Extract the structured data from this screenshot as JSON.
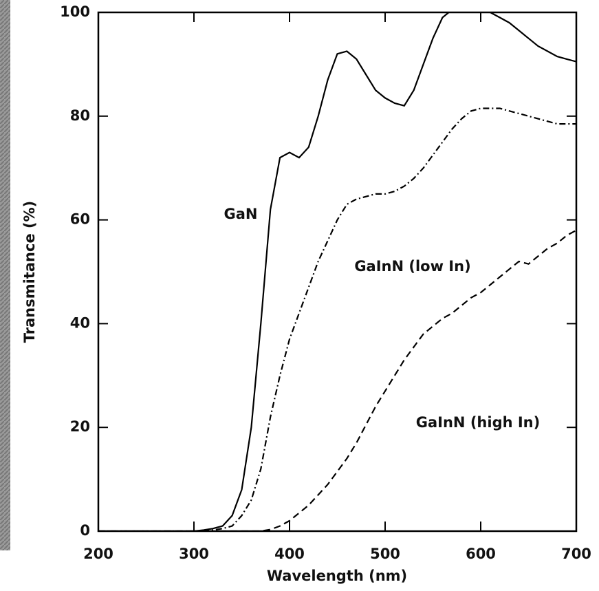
{
  "chart_data": {
    "type": "line",
    "xlabel": "Wavelength (nm)",
    "ylabel": "Transmitance (%)",
    "x": [
      200,
      210,
      220,
      230,
      240,
      250,
      260,
      270,
      280,
      290,
      300,
      310,
      320,
      330,
      340,
      350,
      360,
      370,
      380,
      390,
      400,
      410,
      420,
      430,
      440,
      450,
      460,
      470,
      480,
      490,
      500,
      510,
      520,
      530,
      540,
      550,
      560,
      570,
      580,
      590,
      600,
      610,
      620,
      630,
      640,
      650,
      660,
      670,
      680,
      690,
      700
    ],
    "series": [
      {
        "name": "GaN",
        "color": "#000000",
        "linestyle": "solid",
        "values": [
          0,
          0,
          0,
          0,
          0,
          0,
          0,
          0,
          0,
          0,
          0,
          0.2,
          0.5,
          1,
          3,
          8,
          20,
          40,
          62,
          72,
          73,
          72,
          74,
          80,
          87,
          92,
          92.5,
          91,
          88,
          85,
          83.5,
          82.5,
          82,
          85,
          90,
          95,
          99,
          100.5,
          101,
          101,
          101,
          100,
          99,
          98,
          96.5,
          95,
          93.5,
          92.5,
          91.5,
          91,
          90.5
        ]
      },
      {
        "name": "GaInN (low In)",
        "color": "#000000",
        "linestyle": "dashdot",
        "values": [
          0,
          0,
          0,
          0,
          0,
          0,
          0,
          0,
          0,
          0,
          0,
          0,
          0.2,
          0.5,
          1,
          3,
          6,
          12,
          22,
          30,
          37,
          42,
          47,
          52,
          56,
          60,
          63,
          64,
          64.5,
          65,
          65,
          65.5,
          66.5,
          68,
          70,
          72.5,
          75,
          77.5,
          79.5,
          81,
          81.5,
          81.5,
          81.5,
          81,
          80.5,
          80,
          79.5,
          79,
          78.5,
          78.5,
          78.5
        ]
      },
      {
        "name": "GaInN (high In)",
        "color": "#000000",
        "linestyle": "dashed",
        "values": [
          0,
          0,
          0,
          0,
          0,
          0,
          0,
          0,
          0,
          0,
          0,
          0,
          0,
          0,
          0,
          0,
          0,
          0,
          0.3,
          1,
          2,
          3.5,
          5,
          7,
          9,
          11.5,
          14,
          17,
          20.5,
          24,
          27,
          30,
          33,
          35.5,
          38,
          39.5,
          41,
          42,
          43.5,
          45,
          46,
          47.5,
          49,
          50.5,
          52,
          51.5,
          53,
          54.5,
          55.5,
          57,
          58
        ]
      }
    ],
    "xlim": [
      200,
      700
    ],
    "ylim": [
      0,
      100
    ],
    "xticks": [
      200,
      300,
      400,
      500,
      600,
      700
    ],
    "yticks": [
      0,
      20,
      40,
      60,
      80,
      100
    ]
  }
}
